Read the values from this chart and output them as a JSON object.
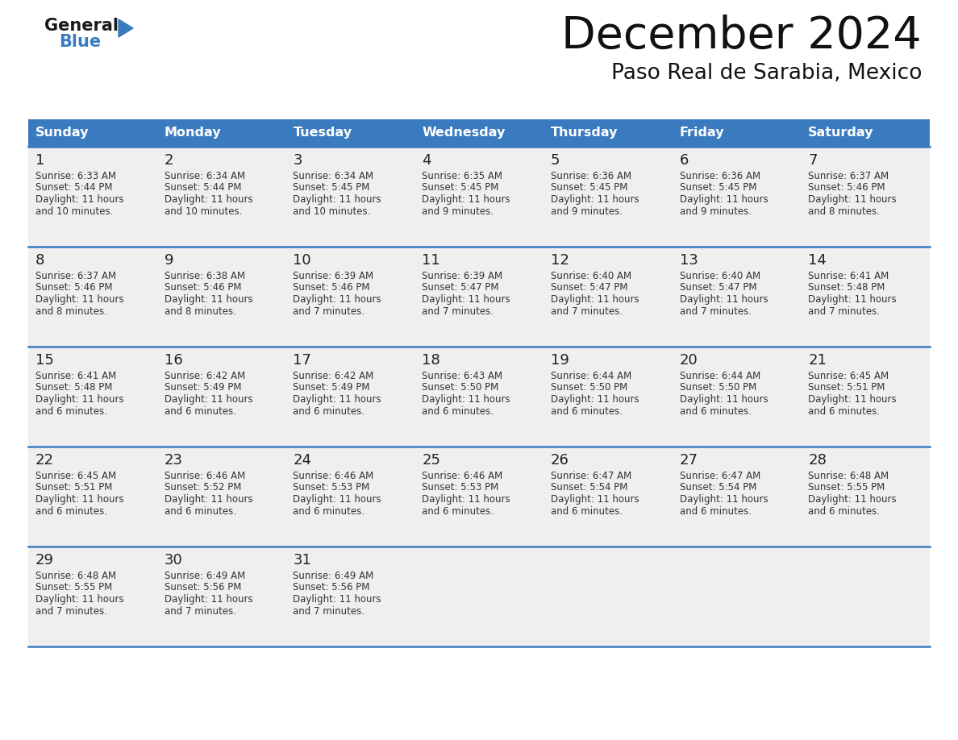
{
  "title": "December 2024",
  "subtitle": "Paso Real de Sarabia, Mexico",
  "header_color": "#3a7bbf",
  "header_text_color": "#ffffff",
  "weekdays": [
    "Sunday",
    "Monday",
    "Tuesday",
    "Wednesday",
    "Thursday",
    "Friday",
    "Saturday"
  ],
  "background_color": "#ffffff",
  "cell_bg_color": "#efefef",
  "divider_color": "#3a7bbf",
  "text_color": "#333333",
  "days": [
    {
      "day": 1,
      "col": 0,
      "row": 0,
      "sunrise": "6:33 AM",
      "sunset": "5:44 PM",
      "daylight_h": "11 hours",
      "daylight_m": "and 10 minutes."
    },
    {
      "day": 2,
      "col": 1,
      "row": 0,
      "sunrise": "6:34 AM",
      "sunset": "5:44 PM",
      "daylight_h": "11 hours",
      "daylight_m": "and 10 minutes."
    },
    {
      "day": 3,
      "col": 2,
      "row": 0,
      "sunrise": "6:34 AM",
      "sunset": "5:45 PM",
      "daylight_h": "11 hours",
      "daylight_m": "and 10 minutes."
    },
    {
      "day": 4,
      "col": 3,
      "row": 0,
      "sunrise": "6:35 AM",
      "sunset": "5:45 PM",
      "daylight_h": "11 hours",
      "daylight_m": "and 9 minutes."
    },
    {
      "day": 5,
      "col": 4,
      "row": 0,
      "sunrise": "6:36 AM",
      "sunset": "5:45 PM",
      "daylight_h": "11 hours",
      "daylight_m": "and 9 minutes."
    },
    {
      "day": 6,
      "col": 5,
      "row": 0,
      "sunrise": "6:36 AM",
      "sunset": "5:45 PM",
      "daylight_h": "11 hours",
      "daylight_m": "and 9 minutes."
    },
    {
      "day": 7,
      "col": 6,
      "row": 0,
      "sunrise": "6:37 AM",
      "sunset": "5:46 PM",
      "daylight_h": "11 hours",
      "daylight_m": "and 8 minutes."
    },
    {
      "day": 8,
      "col": 0,
      "row": 1,
      "sunrise": "6:37 AM",
      "sunset": "5:46 PM",
      "daylight_h": "11 hours",
      "daylight_m": "and 8 minutes."
    },
    {
      "day": 9,
      "col": 1,
      "row": 1,
      "sunrise": "6:38 AM",
      "sunset": "5:46 PM",
      "daylight_h": "11 hours",
      "daylight_m": "and 8 minutes."
    },
    {
      "day": 10,
      "col": 2,
      "row": 1,
      "sunrise": "6:39 AM",
      "sunset": "5:46 PM",
      "daylight_h": "11 hours",
      "daylight_m": "and 7 minutes."
    },
    {
      "day": 11,
      "col": 3,
      "row": 1,
      "sunrise": "6:39 AM",
      "sunset": "5:47 PM",
      "daylight_h": "11 hours",
      "daylight_m": "and 7 minutes."
    },
    {
      "day": 12,
      "col": 4,
      "row": 1,
      "sunrise": "6:40 AM",
      "sunset": "5:47 PM",
      "daylight_h": "11 hours",
      "daylight_m": "and 7 minutes."
    },
    {
      "day": 13,
      "col": 5,
      "row": 1,
      "sunrise": "6:40 AM",
      "sunset": "5:47 PM",
      "daylight_h": "11 hours",
      "daylight_m": "and 7 minutes."
    },
    {
      "day": 14,
      "col": 6,
      "row": 1,
      "sunrise": "6:41 AM",
      "sunset": "5:48 PM",
      "daylight_h": "11 hours",
      "daylight_m": "and 7 minutes."
    },
    {
      "day": 15,
      "col": 0,
      "row": 2,
      "sunrise": "6:41 AM",
      "sunset": "5:48 PM",
      "daylight_h": "11 hours",
      "daylight_m": "and 6 minutes."
    },
    {
      "day": 16,
      "col": 1,
      "row": 2,
      "sunrise": "6:42 AM",
      "sunset": "5:49 PM",
      "daylight_h": "11 hours",
      "daylight_m": "and 6 minutes."
    },
    {
      "day": 17,
      "col": 2,
      "row": 2,
      "sunrise": "6:42 AM",
      "sunset": "5:49 PM",
      "daylight_h": "11 hours",
      "daylight_m": "and 6 minutes."
    },
    {
      "day": 18,
      "col": 3,
      "row": 2,
      "sunrise": "6:43 AM",
      "sunset": "5:50 PM",
      "daylight_h": "11 hours",
      "daylight_m": "and 6 minutes."
    },
    {
      "day": 19,
      "col": 4,
      "row": 2,
      "sunrise": "6:44 AM",
      "sunset": "5:50 PM",
      "daylight_h": "11 hours",
      "daylight_m": "and 6 minutes."
    },
    {
      "day": 20,
      "col": 5,
      "row": 2,
      "sunrise": "6:44 AM",
      "sunset": "5:50 PM",
      "daylight_h": "11 hours",
      "daylight_m": "and 6 minutes."
    },
    {
      "day": 21,
      "col": 6,
      "row": 2,
      "sunrise": "6:45 AM",
      "sunset": "5:51 PM",
      "daylight_h": "11 hours",
      "daylight_m": "and 6 minutes."
    },
    {
      "day": 22,
      "col": 0,
      "row": 3,
      "sunrise": "6:45 AM",
      "sunset": "5:51 PM",
      "daylight_h": "11 hours",
      "daylight_m": "and 6 minutes."
    },
    {
      "day": 23,
      "col": 1,
      "row": 3,
      "sunrise": "6:46 AM",
      "sunset": "5:52 PM",
      "daylight_h": "11 hours",
      "daylight_m": "and 6 minutes."
    },
    {
      "day": 24,
      "col": 2,
      "row": 3,
      "sunrise": "6:46 AM",
      "sunset": "5:53 PM",
      "daylight_h": "11 hours",
      "daylight_m": "and 6 minutes."
    },
    {
      "day": 25,
      "col": 3,
      "row": 3,
      "sunrise": "6:46 AM",
      "sunset": "5:53 PM",
      "daylight_h": "11 hours",
      "daylight_m": "and 6 minutes."
    },
    {
      "day": 26,
      "col": 4,
      "row": 3,
      "sunrise": "6:47 AM",
      "sunset": "5:54 PM",
      "daylight_h": "11 hours",
      "daylight_m": "and 6 minutes."
    },
    {
      "day": 27,
      "col": 5,
      "row": 3,
      "sunrise": "6:47 AM",
      "sunset": "5:54 PM",
      "daylight_h": "11 hours",
      "daylight_m": "and 6 minutes."
    },
    {
      "day": 28,
      "col": 6,
      "row": 3,
      "sunrise": "6:48 AM",
      "sunset": "5:55 PM",
      "daylight_h": "11 hours",
      "daylight_m": "and 6 minutes."
    },
    {
      "day": 29,
      "col": 0,
      "row": 4,
      "sunrise": "6:48 AM",
      "sunset": "5:55 PM",
      "daylight_h": "11 hours",
      "daylight_m": "and 7 minutes."
    },
    {
      "day": 30,
      "col": 1,
      "row": 4,
      "sunrise": "6:49 AM",
      "sunset": "5:56 PM",
      "daylight_h": "11 hours",
      "daylight_m": "and 7 minutes."
    },
    {
      "day": 31,
      "col": 2,
      "row": 4,
      "sunrise": "6:49 AM",
      "sunset": "5:56 PM",
      "daylight_h": "11 hours",
      "daylight_m": "and 7 minutes."
    }
  ],
  "num_rows": 5,
  "logo_general_color": "#1a1a1a",
  "logo_blue_color": "#3a7bbf",
  "figsize": [
    11.88,
    9.18
  ],
  "dpi": 100
}
